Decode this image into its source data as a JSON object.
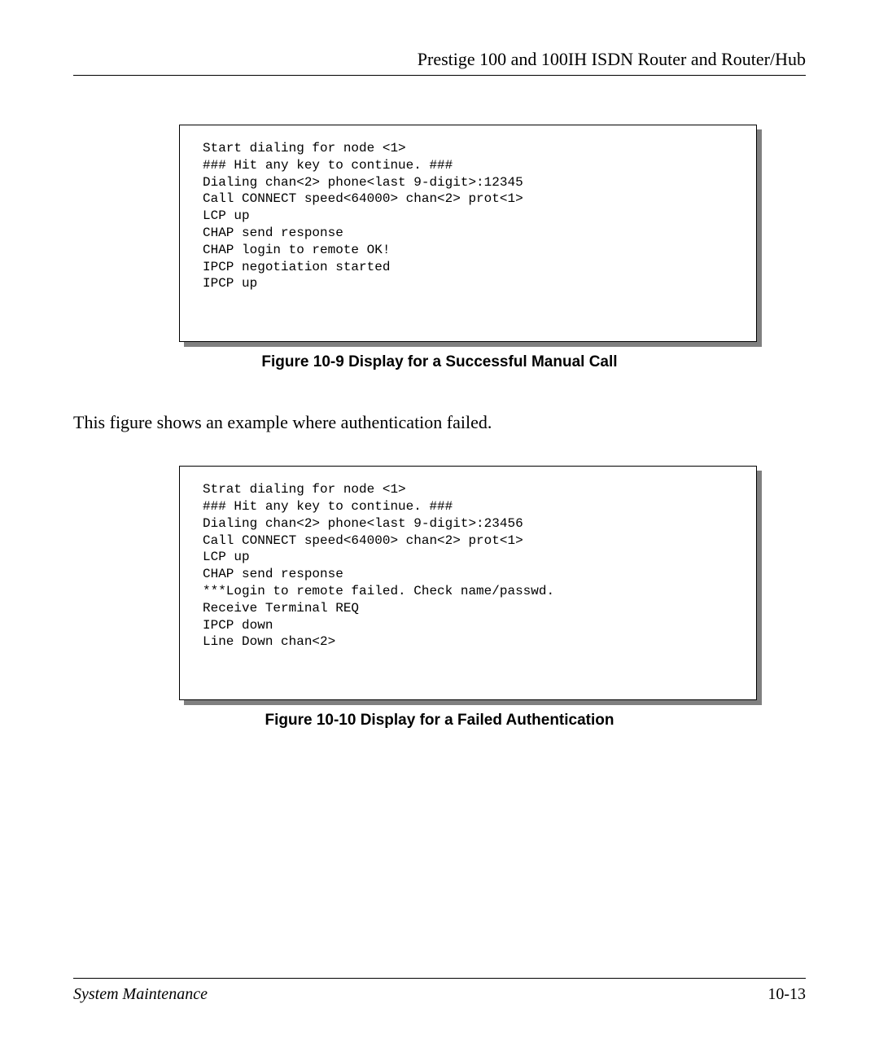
{
  "header": {
    "title": "Prestige 100 and 100IH ISDN Router and Router/Hub"
  },
  "terminal1": {
    "lines": "Start dialing for node <1>\n### Hit any key to continue. ###\nDialing chan<2> phone<last 9-digit>:12345\nCall CONNECT speed<64000> chan<2> prot<1>\nLCP up\nCHAP send response\nCHAP login to remote OK!\nIPCP negotiation started\nIPCP up"
  },
  "caption1": "Figure 10-9 Display for a Successful Manual Call",
  "body_text": "This figure shows an example where authentication failed.",
  "terminal2": {
    "lines": "Strat dialing for node <1>\n### Hit any key to continue. ###\nDialing chan<2> phone<last 9-digit>:23456\nCall CONNECT speed<64000> chan<2> prot<1>\nLCP up\nCHAP send response\n***Login to remote failed. Check name/passwd.\nReceive Terminal REQ\nIPCP down\nLine Down chan<2>"
  },
  "caption2": "Figure 10-10 Display for a Failed Authentication",
  "footer": {
    "left": "System Maintenance",
    "right": "10-13"
  }
}
